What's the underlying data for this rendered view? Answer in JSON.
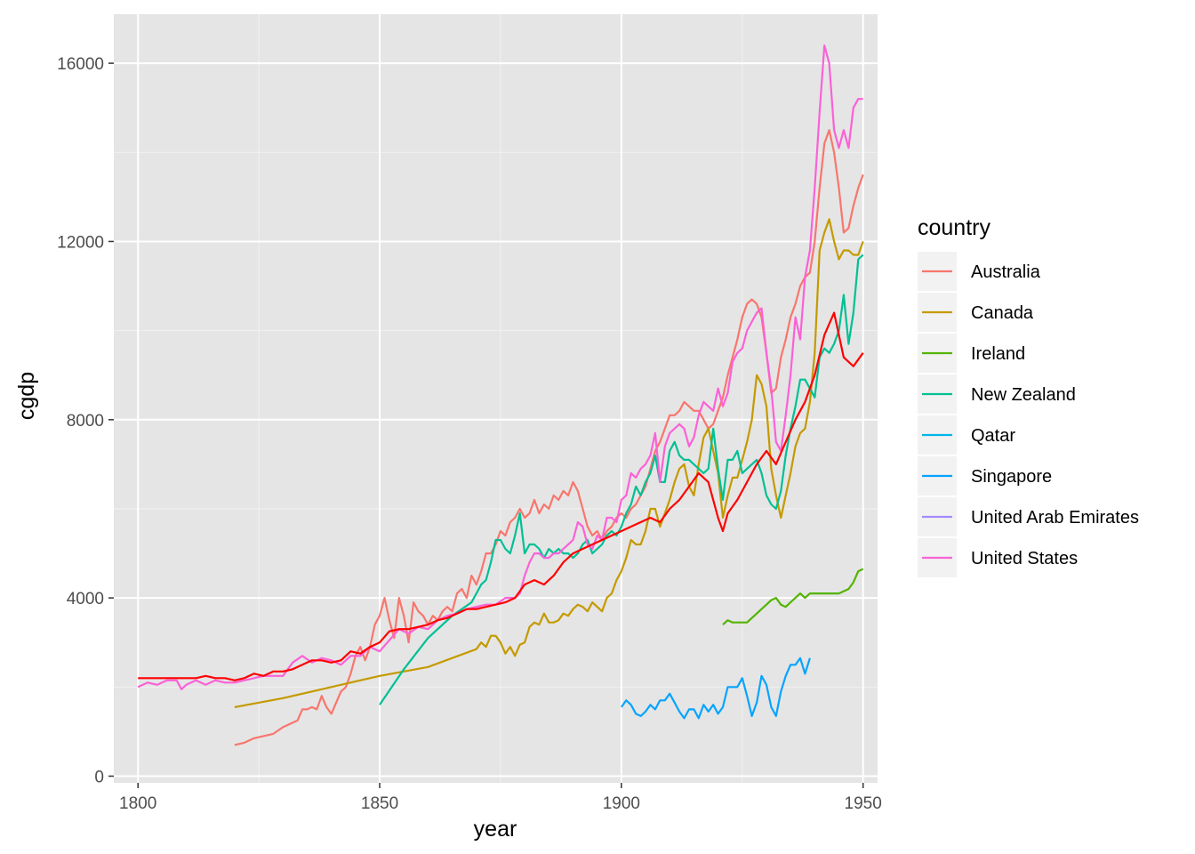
{
  "chart_data": {
    "type": "line",
    "title": "",
    "xlabel": "year",
    "ylabel": "cgdp",
    "xlim": [
      1795,
      1953
    ],
    "ylim": [
      -150,
      17100
    ],
    "x_ticks": [
      1800,
      1850,
      1900,
      1950
    ],
    "y_ticks": [
      0,
      4000,
      8000,
      12000,
      16000
    ],
    "x_tick_labels": [
      "1800",
      "1850",
      "1900",
      "1950"
    ],
    "y_tick_labels": [
      "0",
      "4000",
      "8000",
      "12000",
      "16000"
    ],
    "background": "#e5e5e5",
    "grid": true,
    "legend": {
      "title": "country",
      "position": "right"
    },
    "series": [
      {
        "name": "Australia",
        "color": "#f8766d",
        "x": [
          1820,
          1822,
          1824,
          1826,
          1828,
          1830,
          1831,
          1832,
          1833,
          1834,
          1835,
          1836,
          1837,
          1838,
          1839,
          1840,
          1841,
          1842,
          1843,
          1844,
          1845,
          1846,
          1847,
          1848,
          1849,
          1850,
          1851,
          1852,
          1853,
          1854,
          1855,
          1856,
          1857,
          1858,
          1859,
          1860,
          1861,
          1862,
          1863,
          1864,
          1865,
          1866,
          1867,
          1868,
          1869,
          1870,
          1871,
          1872,
          1873,
          1874,
          1875,
          1876,
          1877,
          1878,
          1879,
          1880,
          1881,
          1882,
          1883,
          1884,
          1885,
          1886,
          1887,
          1888,
          1889,
          1890,
          1891,
          1892,
          1893,
          1894,
          1895,
          1896,
          1897,
          1898,
          1899,
          1900,
          1901,
          1902,
          1903,
          1904,
          1905,
          1906,
          1907,
          1908,
          1909,
          1910,
          1911,
          1912,
          1913,
          1914,
          1915,
          1916,
          1917,
          1918,
          1919,
          1920,
          1921,
          1922,
          1923,
          1924,
          1925,
          1926,
          1927,
          1928,
          1929,
          1930,
          1931,
          1932,
          1933,
          1934,
          1935,
          1936,
          1937,
          1938,
          1939,
          1940,
          1941,
          1942,
          1943,
          1944,
          1945,
          1946,
          1947,
          1948,
          1949,
          1950
        ],
        "y": [
          700,
          750,
          850,
          900,
          950,
          1100,
          1150,
          1200,
          1250,
          1500,
          1500,
          1550,
          1500,
          1800,
          1550,
          1400,
          1650,
          1900,
          2000,
          2300,
          2700,
          2900,
          2600,
          2900,
          3400,
          3600,
          4000,
          3500,
          3100,
          4000,
          3600,
          3000,
          3900,
          3700,
          3600,
          3400,
          3600,
          3500,
          3700,
          3800,
          3700,
          4100,
          4200,
          4000,
          4500,
          4300,
          4600,
          5000,
          5000,
          5200,
          5500,
          5400,
          5700,
          5800,
          6000,
          5800,
          5900,
          6200,
          5900,
          6100,
          6000,
          6300,
          6200,
          6400,
          6300,
          6600,
          6400,
          6000,
          5600,
          5400,
          5500,
          5300,
          5500,
          5600,
          5800,
          5900,
          5800,
          6000,
          6100,
          6300,
          6500,
          6900,
          7300,
          7500,
          7800,
          8100,
          8100,
          8200,
          8400,
          8300,
          8200,
          8200,
          8000,
          7800,
          7900,
          8200,
          8500,
          9000,
          9400,
          9800,
          10300,
          10600,
          10700,
          10600,
          10300,
          9500,
          8600,
          8700,
          9400,
          9800,
          10300,
          10600,
          11000,
          11200,
          11300,
          12000,
          13200,
          14200,
          14500,
          14000,
          13200,
          12200,
          12300,
          12800,
          13200,
          13500
        ]
      },
      {
        "name": "Canada",
        "color": "#c49a00",
        "x": [
          1820,
          1830,
          1840,
          1850,
          1860,
          1870,
          1871,
          1872,
          1873,
          1874,
          1875,
          1876,
          1877,
          1878,
          1879,
          1880,
          1881,
          1882,
          1883,
          1884,
          1885,
          1886,
          1887,
          1888,
          1889,
          1890,
          1891,
          1892,
          1893,
          1894,
          1895,
          1896,
          1897,
          1898,
          1899,
          1900,
          1901,
          1902,
          1903,
          1904,
          1905,
          1906,
          1907,
          1908,
          1909,
          1910,
          1911,
          1912,
          1913,
          1914,
          1915,
          1916,
          1917,
          1918,
          1919,
          1920,
          1921,
          1922,
          1923,
          1924,
          1925,
          1926,
          1927,
          1928,
          1929,
          1930,
          1931,
          1932,
          1933,
          1934,
          1935,
          1936,
          1937,
          1938,
          1939,
          1940,
          1941,
          1942,
          1943,
          1944,
          1945,
          1946,
          1947,
          1948,
          1949,
          1950
        ],
        "y": [
          1550,
          1750,
          2000,
          2250,
          2450,
          2850,
          3000,
          2900,
          3150,
          3150,
          3000,
          2750,
          2900,
          2700,
          2950,
          3000,
          3350,
          3450,
          3400,
          3650,
          3450,
          3450,
          3500,
          3650,
          3600,
          3750,
          3850,
          3800,
          3700,
          3900,
          3800,
          3700,
          4000,
          4100,
          4400,
          4600,
          4900,
          5300,
          5200,
          5200,
          5500,
          6000,
          6000,
          5600,
          5900,
          6200,
          6600,
          6900,
          7000,
          6500,
          6300,
          7000,
          7600,
          7800,
          7300,
          6800,
          5800,
          6300,
          6700,
          6700,
          7100,
          7500,
          8000,
          9000,
          8800,
          8300,
          6900,
          6300,
          5800,
          6300,
          6800,
          7400,
          7700,
          7800,
          8400,
          9500,
          11800,
          12200,
          12500,
          12000,
          11600,
          11800,
          11800,
          11700,
          11700,
          12000
        ]
      },
      {
        "name": "Ireland",
        "color": "#53b400",
        "x": [
          1921,
          1922,
          1923,
          1924,
          1925,
          1926,
          1927,
          1928,
          1929,
          1930,
          1931,
          1932,
          1933,
          1934,
          1935,
          1936,
          1937,
          1938,
          1939,
          1940,
          1941,
          1942,
          1943,
          1944,
          1945,
          1946,
          1947,
          1948,
          1949,
          1950
        ],
        "y": [
          3400,
          3500,
          3450,
          3450,
          3450,
          3450,
          3550,
          3650,
          3750,
          3850,
          3950,
          4000,
          3850,
          3800,
          3900,
          4000,
          4100,
          4000,
          4100,
          4100,
          4100,
          4100,
          4100,
          4100,
          4100,
          4150,
          4200,
          4350,
          4600,
          4650
        ]
      },
      {
        "name": "New Zealand",
        "color": "#00c094",
        "x": [
          1850,
          1855,
          1860,
          1865,
          1869,
          1870,
          1871,
          1872,
          1873,
          1874,
          1875,
          1876,
          1877,
          1878,
          1879,
          1880,
          1881,
          1882,
          1883,
          1884,
          1885,
          1886,
          1887,
          1888,
          1889,
          1890,
          1891,
          1892,
          1893,
          1894,
          1895,
          1896,
          1897,
          1898,
          1899,
          1900,
          1901,
          1902,
          1903,
          1904,
          1905,
          1906,
          1907,
          1908,
          1909,
          1910,
          1911,
          1912,
          1913,
          1914,
          1915,
          1916,
          1917,
          1918,
          1919,
          1920,
          1921,
          1922,
          1923,
          1924,
          1925,
          1926,
          1927,
          1928,
          1929,
          1930,
          1931,
          1932,
          1933,
          1934,
          1935,
          1936,
          1937,
          1938,
          1939,
          1940,
          1941,
          1942,
          1943,
          1944,
          1945,
          1946,
          1947,
          1948,
          1949,
          1950
        ],
        "y": [
          1600,
          2400,
          3100,
          3600,
          3900,
          4100,
          4300,
          4400,
          4800,
          5300,
          5300,
          5100,
          5000,
          5400,
          5900,
          5000,
          5200,
          5200,
          5100,
          4900,
          5100,
          5000,
          5100,
          5000,
          5000,
          4900,
          5000,
          5200,
          5300,
          5000,
          5100,
          5200,
          5400,
          5500,
          5400,
          5600,
          5900,
          6100,
          6500,
          6300,
          6600,
          6800,
          7200,
          6600,
          6600,
          7300,
          7500,
          7200,
          7100,
          7100,
          7000,
          6900,
          6800,
          6900,
          7800,
          6900,
          6200,
          7100,
          7100,
          7300,
          6800,
          6900,
          7000,
          7100,
          6800,
          6300,
          6100,
          6000,
          6400,
          7200,
          7800,
          8300,
          8900,
          8900,
          8700,
          8500,
          9400,
          9600,
          9500,
          9700,
          10000,
          10800,
          9700,
          10400,
          11600,
          11700
        ]
      },
      {
        "name": "Qatar",
        "color": "#00b6eb",
        "x": [],
        "y": []
      },
      {
        "name": "Singapore",
        "color": "#06a4ff",
        "x": [
          1900,
          1901,
          1902,
          1903,
          1904,
          1905,
          1906,
          1907,
          1908,
          1909,
          1910,
          1911,
          1912,
          1913,
          1914,
          1915,
          1916,
          1917,
          1918,
          1919,
          1920,
          1921,
          1922,
          1923,
          1924,
          1925,
          1926,
          1927,
          1928,
          1929,
          1930,
          1931,
          1932,
          1933,
          1934,
          1935,
          1936,
          1937,
          1938,
          1939
        ],
        "y": [
          1550,
          1700,
          1600,
          1400,
          1350,
          1450,
          1600,
          1500,
          1700,
          1700,
          1850,
          1650,
          1450,
          1300,
          1500,
          1500,
          1300,
          1600,
          1450,
          1600,
          1400,
          1550,
          2000,
          2000,
          2000,
          2200,
          1800,
          1350,
          1650,
          2250,
          2050,
          1550,
          1350,
          1900,
          2250,
          2500,
          2500,
          2650,
          2300,
          2650
        ]
      },
      {
        "name": "United Arab Emirates",
        "color": "#a58aff",
        "x": [],
        "y": []
      },
      {
        "name": "United States",
        "color": "#fb61d7",
        "x": [
          1800,
          1802,
          1804,
          1806,
          1808,
          1809,
          1810,
          1812,
          1814,
          1816,
          1818,
          1820,
          1822,
          1824,
          1826,
          1828,
          1830,
          1832,
          1834,
          1836,
          1838,
          1840,
          1842,
          1844,
          1846,
          1848,
          1850,
          1852,
          1854,
          1856,
          1858,
          1860,
          1862,
          1864,
          1866,
          1868,
          1870,
          1872,
          1874,
          1876,
          1878,
          1879,
          1880,
          1881,
          1882,
          1883,
          1884,
          1885,
          1886,
          1887,
          1888,
          1889,
          1890,
          1891,
          1892,
          1893,
          1894,
          1895,
          1896,
          1897,
          1898,
          1899,
          1900,
          1901,
          1902,
          1903,
          1904,
          1905,
          1906,
          1907,
          1908,
          1909,
          1910,
          1911,
          1912,
          1913,
          1914,
          1915,
          1916,
          1917,
          1918,
          1919,
          1920,
          1921,
          1922,
          1923,
          1924,
          1925,
          1926,
          1927,
          1928,
          1929,
          1930,
          1931,
          1932,
          1933,
          1934,
          1935,
          1936,
          1937,
          1938,
          1939,
          1940,
          1941,
          1942,
          1943,
          1944,
          1945,
          1946,
          1947,
          1948,
          1949,
          1950
        ],
        "y": [
          2000,
          2100,
          2050,
          2150,
          2150,
          1950,
          2050,
          2150,
          2050,
          2150,
          2100,
          2100,
          2150,
          2200,
          2250,
          2250,
          2250,
          2550,
          2700,
          2550,
          2650,
          2600,
          2500,
          2700,
          2700,
          2900,
          2800,
          3050,
          3300,
          3200,
          3350,
          3300,
          3500,
          3600,
          3650,
          3750,
          3800,
          3850,
          3850,
          4000,
          4000,
          4100,
          4500,
          4800,
          5000,
          5000,
          4900,
          4900,
          5000,
          5000,
          5100,
          5200,
          5300,
          5700,
          5600,
          5200,
          5100,
          5400,
          5300,
          5800,
          5800,
          5700,
          6200,
          6300,
          6800,
          6700,
          6900,
          7000,
          7200,
          7700,
          6600,
          7400,
          7700,
          7800,
          7900,
          7800,
          7400,
          7600,
          8100,
          8400,
          8300,
          8200,
          8700,
          8300,
          8600,
          9300,
          9500,
          9600,
          10000,
          10200,
          10400,
          10500,
          9500,
          8700,
          7500,
          7300,
          8100,
          9000,
          10300,
          9800,
          11200,
          11800,
          13200,
          14900,
          16400,
          16000,
          14500,
          14100,
          14500,
          14100,
          15000,
          15200,
          15200
        ]
      },
      {
        "name": "",
        "color": "#ff0000",
        "x": [
          1800,
          1802,
          1804,
          1806,
          1808,
          1810,
          1812,
          1814,
          1816,
          1818,
          1820,
          1822,
          1824,
          1826,
          1828,
          1830,
          1832,
          1834,
          1836,
          1838,
          1840,
          1842,
          1844,
          1846,
          1848,
          1850,
          1852,
          1854,
          1856,
          1858,
          1860,
          1862,
          1864,
          1866,
          1868,
          1870,
          1872,
          1874,
          1876,
          1878,
          1880,
          1882,
          1884,
          1886,
          1888,
          1890,
          1892,
          1894,
          1896,
          1898,
          1900,
          1902,
          1904,
          1906,
          1908,
          1910,
          1912,
          1914,
          1916,
          1918,
          1920,
          1921,
          1922,
          1924,
          1926,
          1928,
          1930,
          1932,
          1934,
          1936,
          1938,
          1940,
          1942,
          1944,
          1946,
          1948,
          1950
        ],
        "y": [
          2200,
          2200,
          2200,
          2200,
          2200,
          2200,
          2200,
          2250,
          2200,
          2200,
          2150,
          2200,
          2300,
          2250,
          2350,
          2350,
          2400,
          2500,
          2600,
          2600,
          2550,
          2600,
          2800,
          2750,
          2900,
          3000,
          3250,
          3300,
          3300,
          3350,
          3400,
          3500,
          3550,
          3650,
          3750,
          3750,
          3800,
          3850,
          3900,
          4000,
          4300,
          4400,
          4300,
          4500,
          4800,
          5000,
          5100,
          5200,
          5300,
          5400,
          5500,
          5600,
          5700,
          5800,
          5700,
          6000,
          6200,
          6500,
          6800,
          6600,
          5800,
          5500,
          5900,
          6200,
          6600,
          7000,
          7300,
          7000,
          7500,
          8000,
          8400,
          9000,
          9900,
          10400,
          9400,
          9200,
          9500
        ]
      }
    ]
  }
}
